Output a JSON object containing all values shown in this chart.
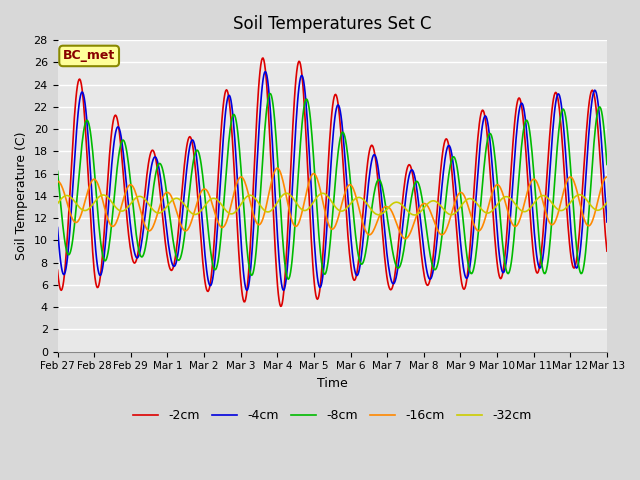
{
  "title": "Soil Temperatures Set C",
  "xlabel": "Time",
  "ylabel": "Soil Temperature (C)",
  "ylim": [
    0,
    28
  ],
  "yticks": [
    0,
    2,
    4,
    6,
    8,
    10,
    12,
    14,
    16,
    18,
    20,
    22,
    24,
    26,
    28
  ],
  "x_labels": [
    "Feb 27",
    "Feb 28",
    "Feb 29",
    "Mar 1",
    "Mar 2",
    "Mar 3",
    "Mar 4",
    "Mar 5",
    "Mar 6",
    "Mar 7",
    "Mar 8",
    "Mar 9",
    "Mar 10",
    "Mar 11",
    "Mar 12",
    "Mar 13"
  ],
  "series": {
    "-2cm": {
      "color": "#dd0000",
      "lw": 1.2
    },
    "-4cm": {
      "color": "#0000dd",
      "lw": 1.2
    },
    "-8cm": {
      "color": "#00bb00",
      "lw": 1.2
    },
    "-16cm": {
      "color": "#ff8800",
      "lw": 1.2
    },
    "-32cm": {
      "color": "#cccc00",
      "lw": 1.2
    }
  },
  "bg_color": "#e8e8e8",
  "grid_color": "#ffffff",
  "annotation_text": "BC_met",
  "annotation_bg": "#ffff99",
  "annotation_border": "#888800"
}
